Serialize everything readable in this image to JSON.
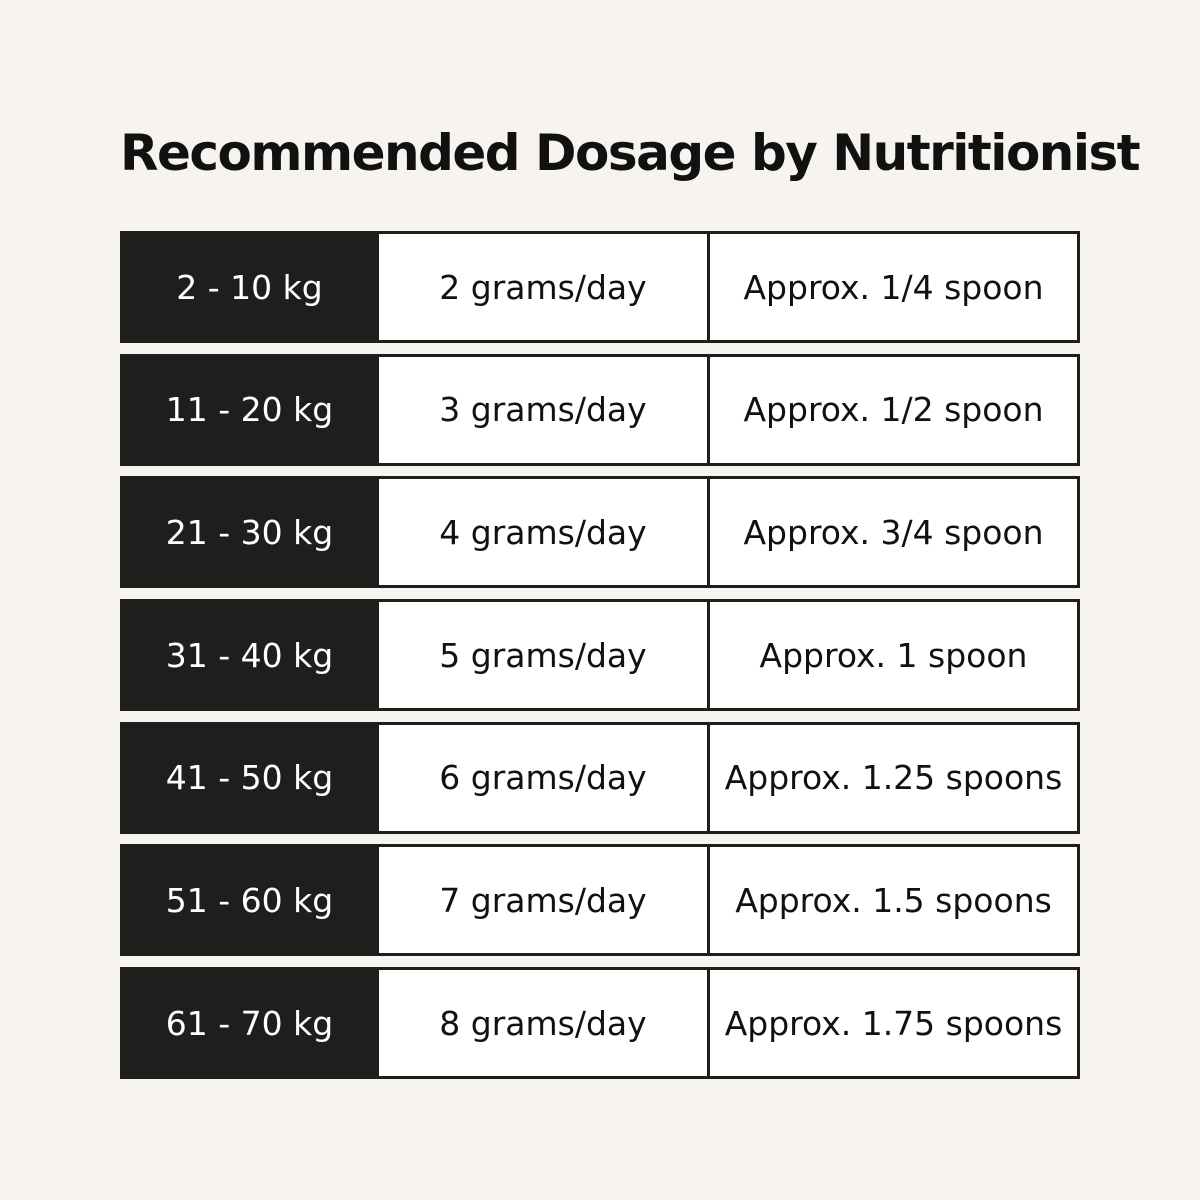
{
  "header": {
    "title": "Recommended Dosage by Nutritionist"
  },
  "table": {
    "rows": [
      [
        "2 - 10 kg",
        "2 grams/day",
        "Approx. 1/4 spoon"
      ],
      [
        "11 - 20 kg",
        "3 grams/day",
        "Approx. 1/2 spoon"
      ],
      [
        "21 - 30 kg",
        "4 grams/day",
        "Approx. 3/4 spoon"
      ],
      [
        "31 - 40 kg",
        "5 grams/day",
        "Approx. 1 spoon"
      ],
      [
        "41 - 50 kg",
        "6 grams/day",
        "Approx. 1.25 spoons"
      ],
      [
        "51 - 60 kg",
        "7 grams/day",
        "Approx. 1.5 spoons"
      ],
      [
        "61 - 70 kg",
        "8 grams/day",
        "Approx. 1.75 spoons"
      ]
    ]
  }
}
